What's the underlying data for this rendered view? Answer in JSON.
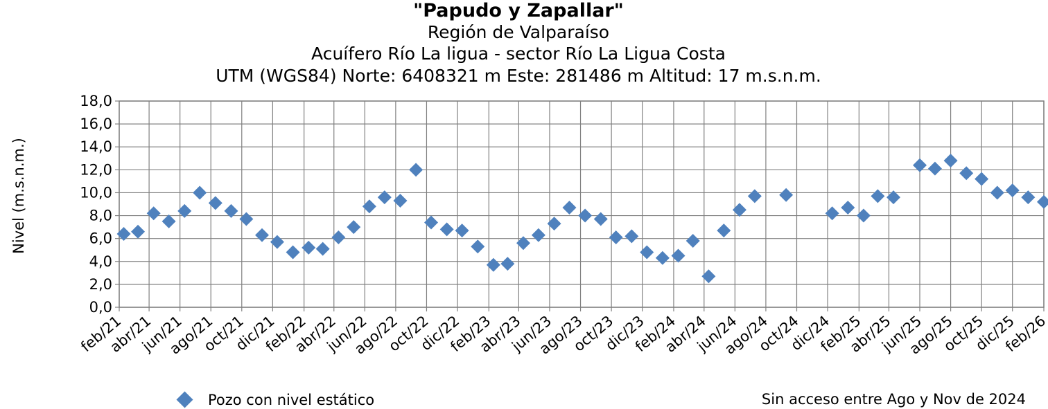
{
  "chart_data": {
    "type": "scatter",
    "title": "\"Papudo y Zapallar\"",
    "subtitles": [
      "Región de Valparaíso",
      "Acuífero Río La ligua - sector Río La Ligua Costa",
      "UTM (WGS84) Norte: 6408321 m Este: 281486 m   Altitud: 17 m.s.n.m."
    ],
    "ylabel": "Nivel (m.s.n.m.)",
    "xlabel": "",
    "ylim": [
      0,
      18
    ],
    "yticks": [
      "0,0",
      "2,0",
      "4,0",
      "6,0",
      "8,0",
      "10,0",
      "12,0",
      "14,0",
      "16,0",
      "18,0"
    ],
    "xlim": [
      "2021-02-01",
      "2026-02-01"
    ],
    "xticks": [
      "feb/21",
      "abr/21",
      "jun/21",
      "ago/21",
      "oct/21",
      "dic/21",
      "feb/22",
      "abr/22",
      "jun/22",
      "ago/22",
      "oct/22",
      "dic/22",
      "feb/23",
      "abr/23",
      "jun/23",
      "ago/23",
      "oct/23",
      "dic/23",
      "feb/24",
      "abr/24",
      "jun/24",
      "ago/24",
      "oct/24",
      "dic/24",
      "feb/25",
      "abr/25",
      "jun/25",
      "ago/25",
      "oct/25",
      "dic/25",
      "feb/26"
    ],
    "grid": true,
    "series_color": "#4F81BD",
    "series": [
      {
        "name": "Pozo con nivel estático",
        "points": [
          {
            "x": "2021-02-10",
            "y": 6.4
          },
          {
            "x": "2021-03-10",
            "y": 6.6
          },
          {
            "x": "2021-04-10",
            "y": 8.2
          },
          {
            "x": "2021-05-10",
            "y": 7.5
          },
          {
            "x": "2021-06-10",
            "y": 8.4
          },
          {
            "x": "2021-07-10",
            "y": 10.0
          },
          {
            "x": "2021-08-10",
            "y": 9.1
          },
          {
            "x": "2021-09-10",
            "y": 8.4
          },
          {
            "x": "2021-10-10",
            "y": 7.7
          },
          {
            "x": "2021-11-10",
            "y": 6.3
          },
          {
            "x": "2021-12-10",
            "y": 5.7
          },
          {
            "x": "2022-01-10",
            "y": 4.8
          },
          {
            "x": "2022-02-10",
            "y": 5.2
          },
          {
            "x": "2022-03-10",
            "y": 5.1
          },
          {
            "x": "2022-04-10",
            "y": 6.1
          },
          {
            "x": "2022-05-10",
            "y": 7.0
          },
          {
            "x": "2022-06-10",
            "y": 8.8
          },
          {
            "x": "2022-07-10",
            "y": 9.6
          },
          {
            "x": "2022-08-10",
            "y": 9.3
          },
          {
            "x": "2022-09-10",
            "y": 12.0
          },
          {
            "x": "2022-10-10",
            "y": 7.4
          },
          {
            "x": "2022-11-10",
            "y": 6.8
          },
          {
            "x": "2022-12-10",
            "y": 6.7
          },
          {
            "x": "2023-01-10",
            "y": 5.3
          },
          {
            "x": "2023-02-10",
            "y": 3.7
          },
          {
            "x": "2023-03-10",
            "y": 3.8
          },
          {
            "x": "2023-04-10",
            "y": 5.6
          },
          {
            "x": "2023-05-10",
            "y": 6.3
          },
          {
            "x": "2023-06-10",
            "y": 7.3
          },
          {
            "x": "2023-07-10",
            "y": 8.7
          },
          {
            "x": "2023-08-10",
            "y": 8.0
          },
          {
            "x": "2023-09-10",
            "y": 7.7
          },
          {
            "x": "2023-10-10",
            "y": 6.1
          },
          {
            "x": "2023-11-10",
            "y": 6.2
          },
          {
            "x": "2023-12-10",
            "y": 4.8
          },
          {
            "x": "2024-01-10",
            "y": 4.3
          },
          {
            "x": "2024-02-10",
            "y": 4.5
          },
          {
            "x": "2024-03-10",
            "y": 5.8
          },
          {
            "x": "2024-04-10",
            "y": 2.7
          },
          {
            "x": "2024-05-10",
            "y": 6.7
          },
          {
            "x": "2024-06-10",
            "y": 8.5
          },
          {
            "x": "2024-07-10",
            "y": 9.7
          },
          {
            "x": "2024-09-10",
            "y": 9.8
          },
          {
            "x": "2024-12-10",
            "y": 8.2
          },
          {
            "x": "2025-01-10",
            "y": 8.7
          },
          {
            "x": "2025-02-10",
            "y": 8.0
          },
          {
            "x": "2025-03-10",
            "y": 9.7
          },
          {
            "x": "2025-04-10",
            "y": 9.6
          },
          {
            "x": "2025-06-01",
            "y": 12.4
          },
          {
            "x": "2025-07-01",
            "y": 12.1
          },
          {
            "x": "2025-08-01",
            "y": 12.8
          },
          {
            "x": "2025-09-01",
            "y": 11.7
          },
          {
            "x": "2025-10-01",
            "y": 11.2
          },
          {
            "x": "2025-11-01",
            "y": 10.0
          },
          {
            "x": "2025-12-01",
            "y": 10.2
          },
          {
            "x": "2026-01-01",
            "y": 9.6
          },
          {
            "x": "2026-02-01",
            "y": 9.2
          }
        ]
      }
    ],
    "legend_placement": "bottom-left",
    "annotation": "Sin acceso entre Ago y Nov de 2024"
  }
}
